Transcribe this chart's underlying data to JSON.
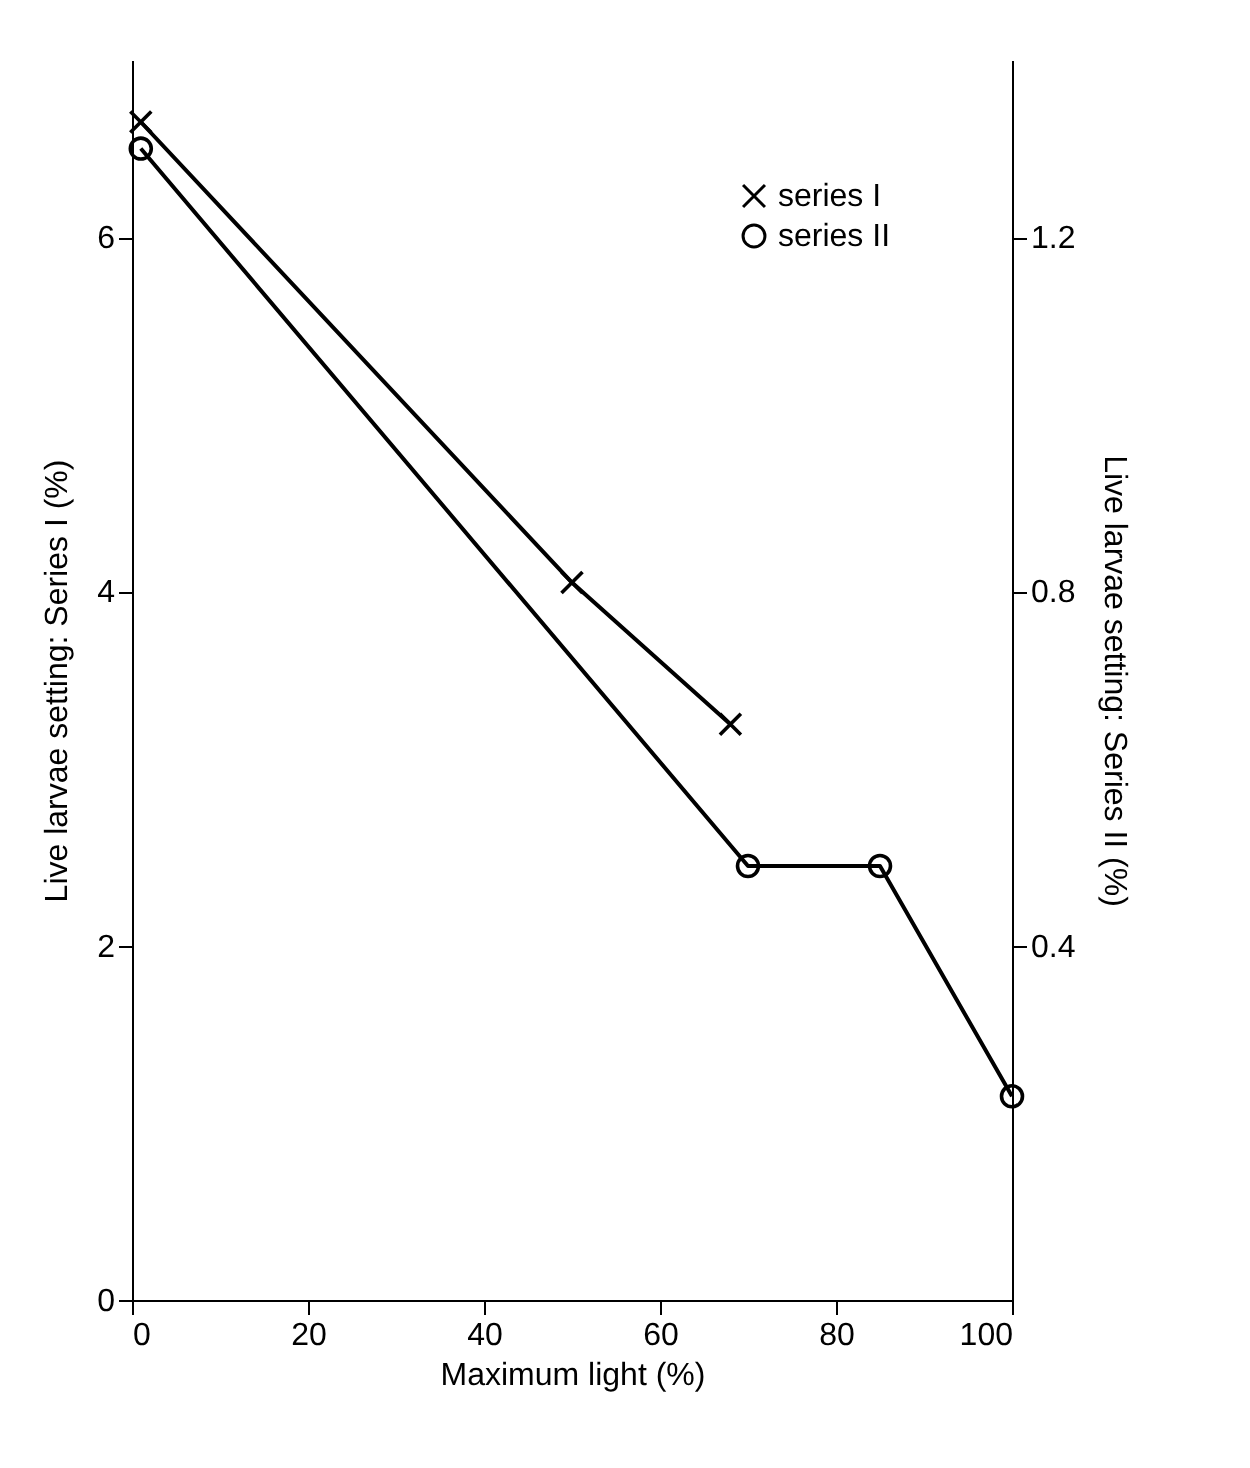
{
  "chart_data": {
    "type": "line",
    "xlabel": "Maximum  light (%)",
    "ylabel": "Live larvae setting: Series I (%)",
    "y2label": "Live larvae setting: Series II (%)",
    "xlim": [
      0,
      100
    ],
    "xticks": [
      0,
      20,
      40,
      60,
      80,
      100
    ],
    "ylim": [
      0,
      7
    ],
    "yticks": [
      0,
      2,
      4,
      6
    ],
    "y2lim": [
      0,
      1.4
    ],
    "y2ticks": [
      0.4,
      0.8,
      1.2
    ],
    "legend": "top right",
    "grid": false,
    "line_style": "solid",
    "series": [
      {
        "name": "series I",
        "color": "#000000",
        "marker": "cross",
        "x": [
          1,
          50,
          68
        ],
        "values": [
          6.65,
          4.05,
          3.25
        ]
      },
      {
        "name": "series II",
        "color": "#000000",
        "marker": "circle",
        "axis": "y2",
        "x": [
          1,
          70,
          85,
          100
        ],
        "values": [
          1.3,
          0.49,
          0.49,
          0.23
        ]
      }
    ]
  }
}
